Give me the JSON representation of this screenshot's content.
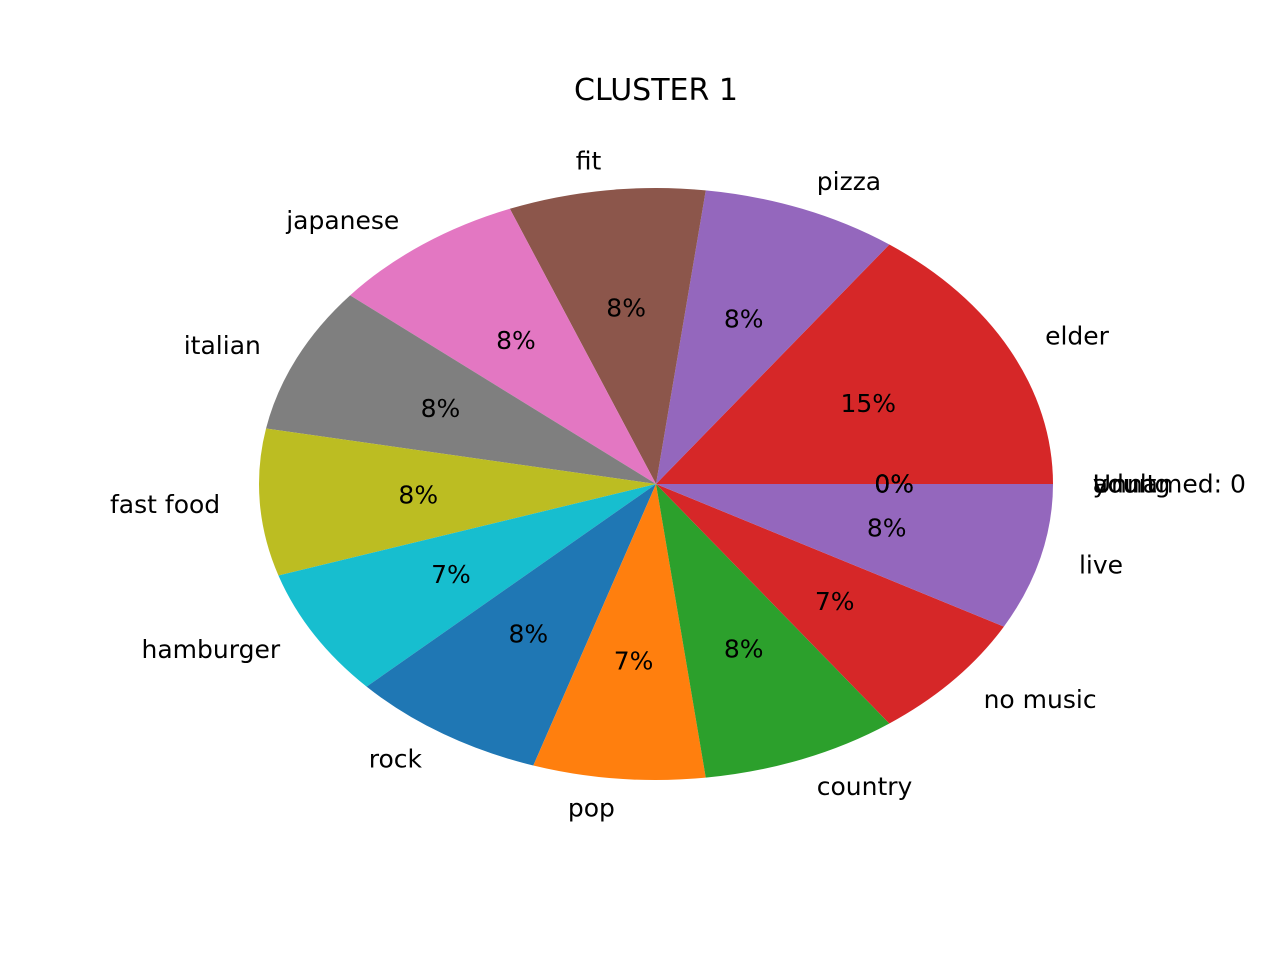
{
  "chart_data": {
    "type": "pie",
    "title": "CLUSTER 1",
    "start_angle_deg": 0,
    "direction": "counterclockwise",
    "slices": [
      {
        "label": "Unnamed: 0",
        "value": 0,
        "pct_label": "0%",
        "color": "#1f77b4"
      },
      {
        "label": "adult",
        "value": 0,
        "pct_label": "0%",
        "color": "#ff7f0e"
      },
      {
        "label": "young",
        "value": 0,
        "pct_label": "0%",
        "color": "#2ca02c"
      },
      {
        "label": "elder",
        "value": 15,
        "pct_label": "15%",
        "color": "#d62728"
      },
      {
        "label": "pizza",
        "value": 8,
        "pct_label": "8%",
        "color": "#9467bd"
      },
      {
        "label": "fit",
        "value": 8,
        "pct_label": "8%",
        "color": "#8c564b"
      },
      {
        "label": "japanese",
        "value": 8,
        "pct_label": "8%",
        "color": "#e377c2"
      },
      {
        "label": "italian",
        "value": 8,
        "pct_label": "8%",
        "color": "#7f7f7f"
      },
      {
        "label": "fast food",
        "value": 8,
        "pct_label": "8%",
        "color": "#bcbd22"
      },
      {
        "label": "hamburger",
        "value": 7,
        "pct_label": "7%",
        "color": "#17becf"
      },
      {
        "label": "rock",
        "value": 8,
        "pct_label": "8%",
        "color": "#1f77b4"
      },
      {
        "label": "pop",
        "value": 7,
        "pct_label": "7%",
        "color": "#ff7f0e"
      },
      {
        "label": "country",
        "value": 8,
        "pct_label": "8%",
        "color": "#2ca02c"
      },
      {
        "label": "no music",
        "value": 7,
        "pct_label": "7%",
        "color": "#d62728"
      },
      {
        "label": "live",
        "value": 8,
        "pct_label": "8%",
        "color": "#9467bd"
      }
    ]
  }
}
